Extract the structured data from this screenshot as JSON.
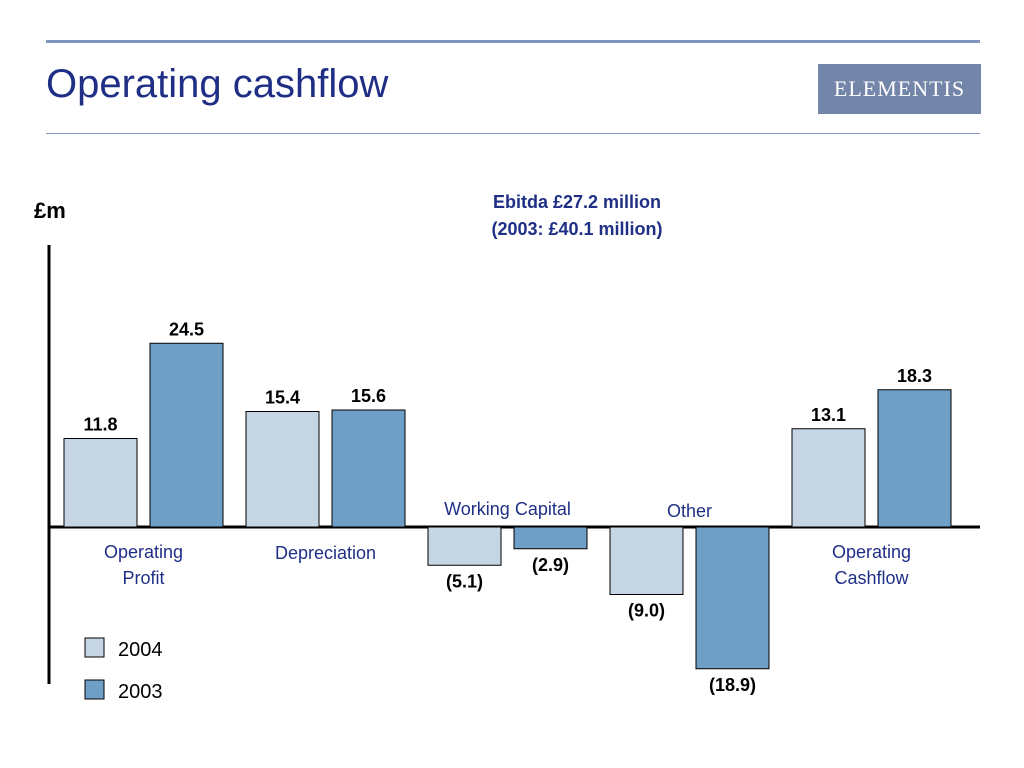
{
  "slide": {
    "title": "Operating cashflow",
    "logo_text": "ELEMENTIS"
  },
  "chart_data": {
    "type": "bar",
    "unit_label": "£m",
    "annotation": [
      "Ebitda £27.2 million",
      "(2003: £40.1 million)"
    ],
    "categories": [
      [
        "Operating",
        "Profit"
      ],
      [
        "Depreciation"
      ],
      [
        "Working Capital"
      ],
      [
        "Other"
      ],
      [
        "Operating",
        "Cashflow"
      ]
    ],
    "series": [
      {
        "name": "2004",
        "values": [
          11.8,
          15.4,
          -5.1,
          -9.0,
          13.1
        ],
        "labels": [
          "11.8",
          "15.4",
          "(5.1)",
          "(9.0)",
          "13.1"
        ],
        "color": "#c5d5e4"
      },
      {
        "name": "2003",
        "values": [
          24.5,
          15.6,
          -2.9,
          -18.9,
          18.3
        ],
        "labels": [
          "24.5",
          "15.6",
          "(2.9)",
          "(18.9)",
          "18.3"
        ],
        "color": "#6f9ec6"
      }
    ],
    "legend_placement": "bottom-left",
    "grid": false
  }
}
